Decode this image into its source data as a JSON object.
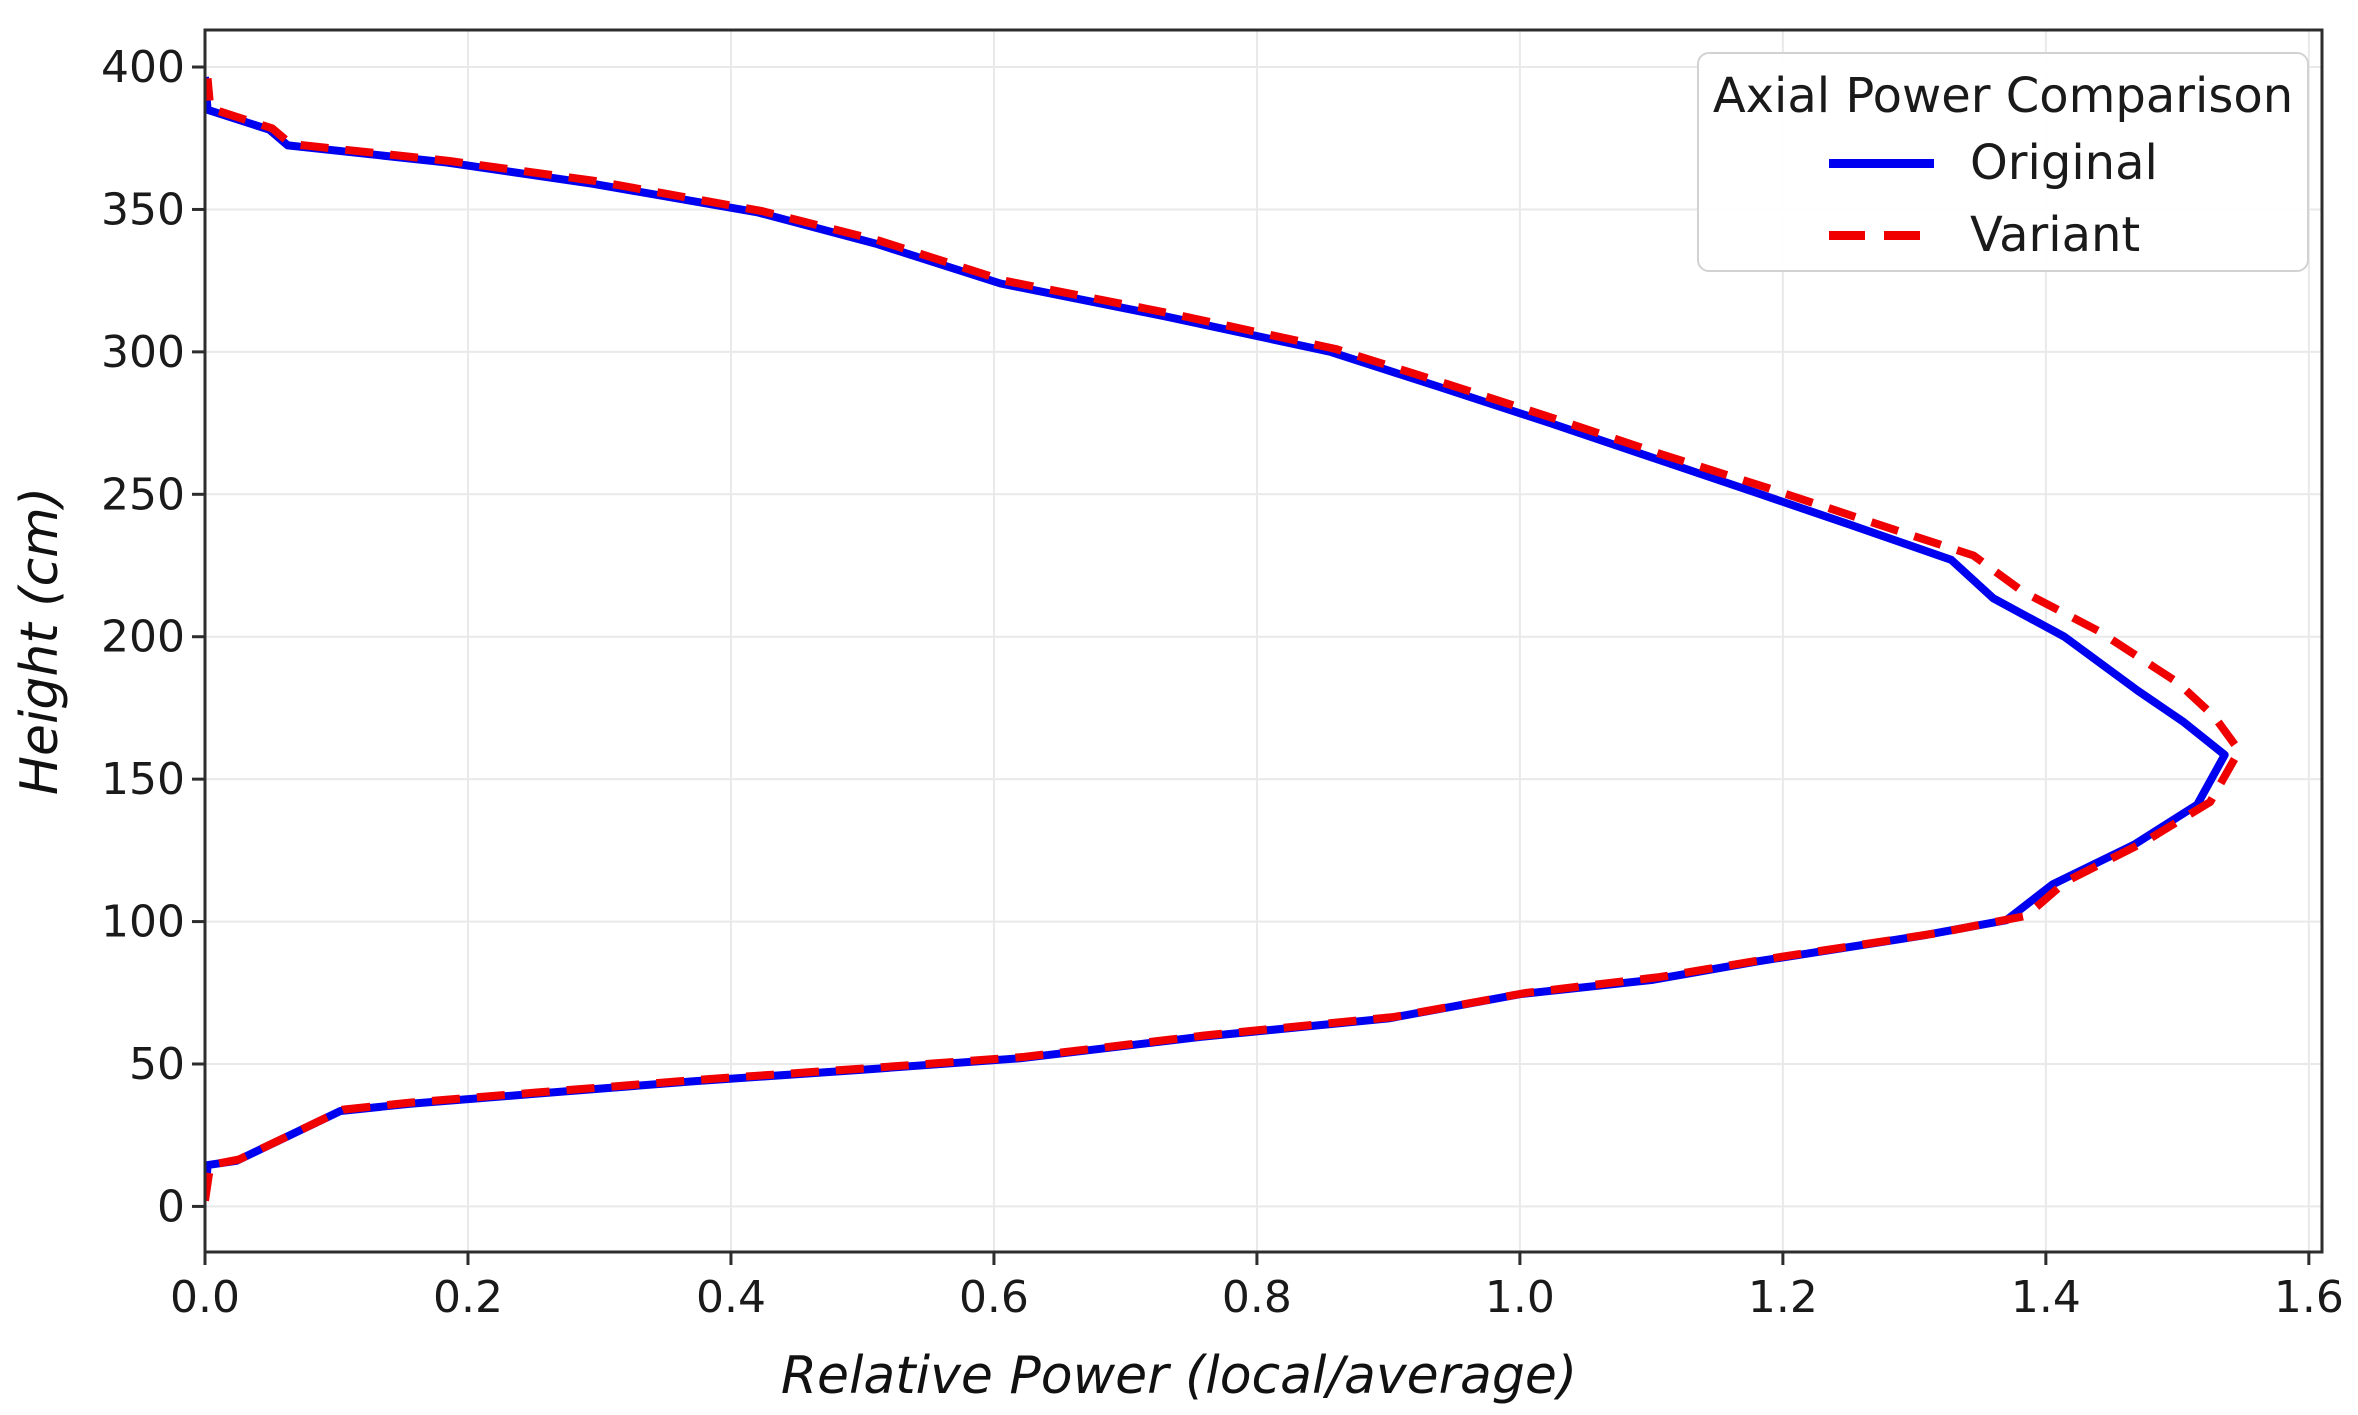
{
  "chart_data": {
    "type": "line",
    "title": "",
    "xlabel": "Relative Power (local/average)",
    "ylabel": "Height (cm)",
    "xlim": [
      0,
      1.61
    ],
    "ylim": [
      -16,
      413
    ],
    "grid": true,
    "x_ticks": [
      0.0,
      0.2,
      0.4,
      0.6,
      0.8,
      1.0,
      1.2,
      1.4,
      1.6
    ],
    "x_tick_labels": [
      "0.0",
      "0.2",
      "0.4",
      "0.6",
      "0.8",
      "1.0",
      "1.2",
      "1.4",
      "1.6"
    ],
    "y_ticks": [
      0,
      50,
      100,
      150,
      200,
      250,
      300,
      350,
      400
    ],
    "y_tick_labels": [
      "0",
      "50",
      "100",
      "150",
      "200",
      "250",
      "300",
      "350",
      "400"
    ],
    "legend": {
      "title": "Axial Power Comparison",
      "position": "upper right"
    },
    "series": [
      {
        "name": "Original",
        "color": "#0000f0",
        "style": "solid",
        "x_is": "relative_power",
        "y_is": "height_cm",
        "points": [
          [
            0.0,
            2
          ],
          [
            0.002,
            14.5
          ],
          [
            0.024,
            16
          ],
          [
            0.103,
            33.5
          ],
          [
            0.155,
            36
          ],
          [
            0.25,
            39.5
          ],
          [
            0.373,
            44
          ],
          [
            0.5,
            48
          ],
          [
            0.62,
            52
          ],
          [
            0.757,
            59.5
          ],
          [
            0.9,
            66
          ],
          [
            1.0,
            74.5
          ],
          [
            1.1,
            79.5
          ],
          [
            1.18,
            86
          ],
          [
            1.305,
            95
          ],
          [
            1.37,
            100.5
          ],
          [
            1.405,
            113
          ],
          [
            1.467,
            127
          ],
          [
            1.515,
            141
          ],
          [
            1.536,
            158.5
          ],
          [
            1.505,
            170
          ],
          [
            1.47,
            181
          ],
          [
            1.414,
            200
          ],
          [
            1.36,
            213.5
          ],
          [
            1.328,
            227
          ],
          [
            1.25,
            239.5
          ],
          [
            1.18,
            250.5
          ],
          [
            1.1,
            263
          ],
          [
            1.023,
            275
          ],
          [
            0.94,
            287.5
          ],
          [
            0.856,
            300
          ],
          [
            0.73,
            312.5
          ],
          [
            0.605,
            324
          ],
          [
            0.51,
            338
          ],
          [
            0.42,
            349
          ],
          [
            0.295,
            359
          ],
          [
            0.184,
            366.5
          ],
          [
            0.063,
            372.5
          ],
          [
            0.049,
            378
          ],
          [
            0.002,
            385
          ],
          [
            0.0,
            396.5
          ]
        ]
      },
      {
        "name": "Variant",
        "color": "#f00000",
        "style": "dashed",
        "x_is": "relative_power",
        "y_is": "height_cm",
        "points": [
          [
            0.0,
            2
          ],
          [
            0.004,
            14.5
          ],
          [
            0.026,
            16.5
          ],
          [
            0.105,
            34
          ],
          [
            0.157,
            36.5
          ],
          [
            0.252,
            40
          ],
          [
            0.376,
            44.5
          ],
          [
            0.503,
            48.5
          ],
          [
            0.623,
            52.5
          ],
          [
            0.76,
            60
          ],
          [
            0.904,
            66.5
          ],
          [
            1.005,
            75
          ],
          [
            1.106,
            80.5
          ],
          [
            1.19,
            87
          ],
          [
            1.318,
            96
          ],
          [
            1.385,
            102
          ],
          [
            1.415,
            114
          ],
          [
            1.475,
            128
          ],
          [
            1.525,
            142
          ],
          [
            1.547,
            160
          ],
          [
            1.528,
            172
          ],
          [
            1.5,
            184
          ],
          [
            1.44,
            202
          ],
          [
            1.382,
            216
          ],
          [
            1.345,
            228.5
          ],
          [
            1.262,
            241
          ],
          [
            1.19,
            252
          ],
          [
            1.108,
            264
          ],
          [
            1.03,
            276
          ],
          [
            0.946,
            288.5
          ],
          [
            0.86,
            301
          ],
          [
            0.734,
            313.5
          ],
          [
            0.608,
            325
          ],
          [
            0.513,
            339
          ],
          [
            0.423,
            349.5
          ],
          [
            0.297,
            360
          ],
          [
            0.186,
            367
          ],
          [
            0.065,
            373
          ],
          [
            0.051,
            378.5
          ],
          [
            0.004,
            385.5
          ],
          [
            0.002,
            396
          ]
        ]
      }
    ],
    "plot_style": {
      "background": "#ffffff",
      "grid_color": "#e9e9e9",
      "spine_color": "#2d2d2d",
      "line_width": 8
    }
  }
}
